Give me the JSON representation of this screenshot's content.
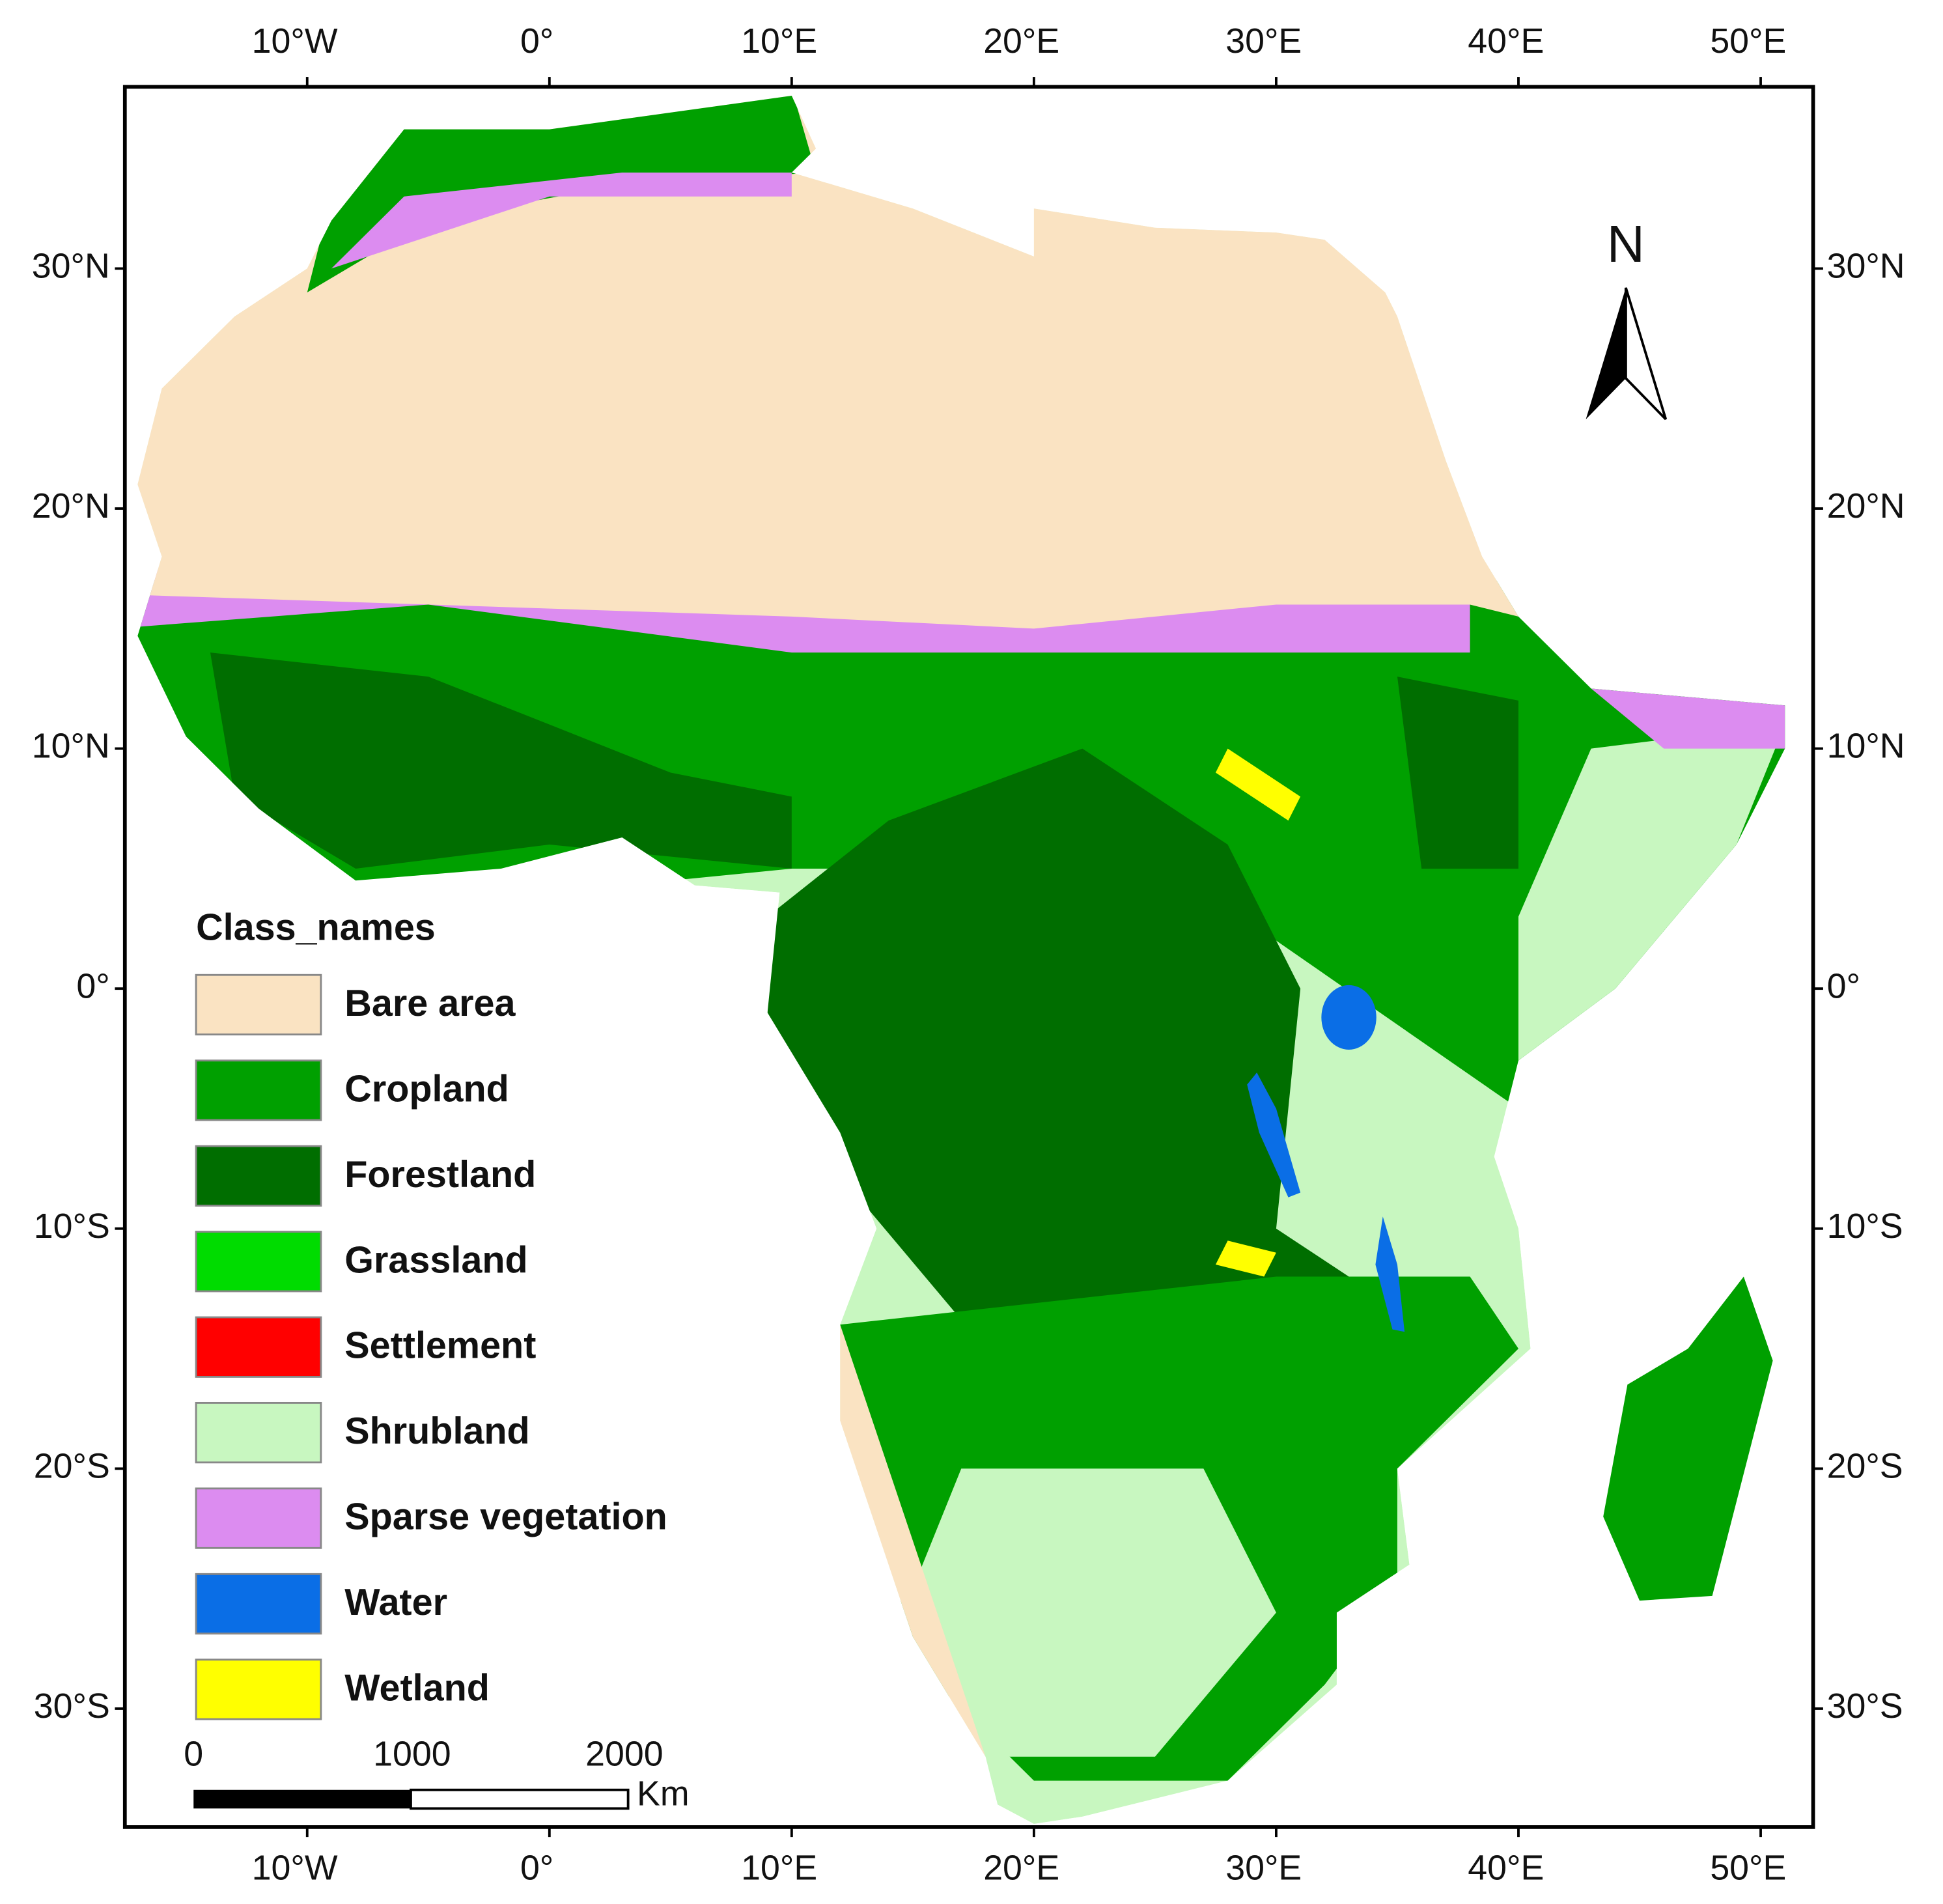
{
  "map": {
    "x_labels": [
      "10°W",
      "0°",
      "10°E",
      "20°E",
      "30°E",
      "40°E",
      "50°E"
    ],
    "y_labels": [
      "30°N",
      "20°N",
      "10°N",
      "0°",
      "10°S",
      "20°S",
      "30°S"
    ],
    "legend": {
      "title": "Class_names",
      "items": [
        {
          "label": "Bare area",
          "color": "#fae3c2"
        },
        {
          "label": "Cropland",
          "color": "#00a000"
        },
        {
          "label": "Forestland",
          "color": "#006e00"
        },
        {
          "label": "Grassland",
          "color": "#00dc00"
        },
        {
          "label": "Settlement",
          "color": "#ff0000"
        },
        {
          "label": "Shrubland",
          "color": "#c8f7c0"
        },
        {
          "label": "Sparse vegetation",
          "color": "#dc8cf0"
        },
        {
          "label": "Water",
          "color": "#0a6ee6"
        },
        {
          "label": "Wetland",
          "color": "#ffff00"
        }
      ]
    },
    "north": "N",
    "scale_bar": {
      "labels": [
        "0",
        "1000",
        "2000"
      ],
      "unit": "Km"
    }
  }
}
